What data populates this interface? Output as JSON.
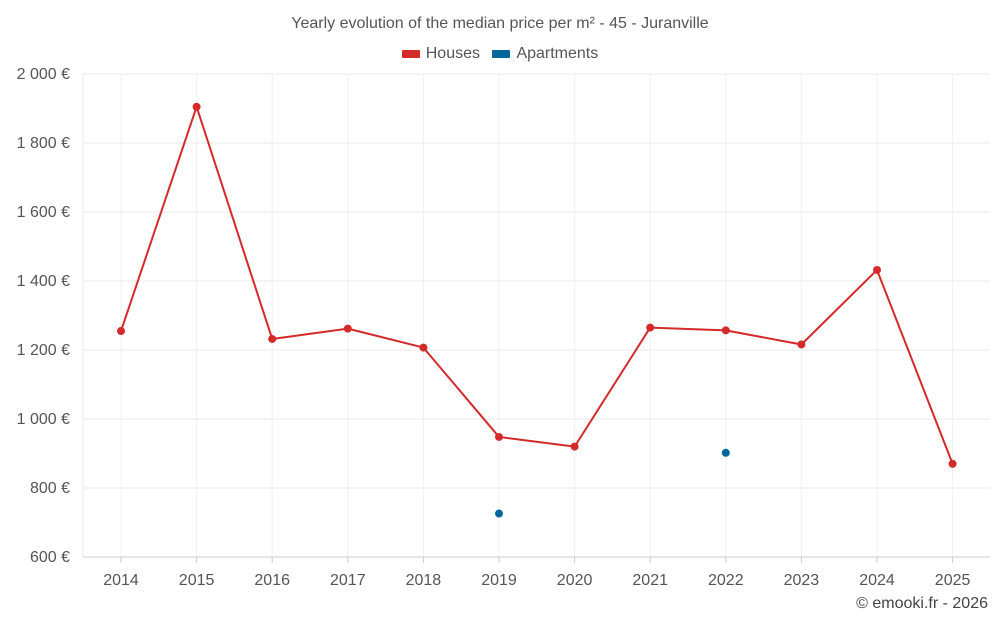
{
  "chart_data": {
    "type": "line",
    "title": "Yearly evolution of the median price per m² - 45 - Juranville",
    "xlabel": "",
    "ylabel": "",
    "categories": [
      "2014",
      "2015",
      "2016",
      "2017",
      "2018",
      "2019",
      "2020",
      "2021",
      "2022",
      "2023",
      "2024",
      "2025"
    ],
    "ylim": [
      600,
      2000
    ],
    "y_ticks": [
      600,
      800,
      1000,
      1200,
      1400,
      1600,
      1800,
      2000
    ],
    "y_tick_labels": [
      "600 €",
      "800 €",
      "1 000 €",
      "1 200 €",
      "1 400 €",
      "1 600 €",
      "1 800 €",
      "2 000 €"
    ],
    "grid": true,
    "legend_position": "top-center",
    "series": [
      {
        "name": "Houses",
        "color": "#d42a2a",
        "line": true,
        "values": [
          1255,
          1905,
          1232,
          1262,
          1207,
          948,
          920,
          1265,
          1257,
          1216,
          1432,
          870
        ]
      },
      {
        "name": "Apartments",
        "color": "#00679e",
        "line": false,
        "values": [
          null,
          null,
          null,
          null,
          null,
          726,
          null,
          null,
          902,
          null,
          null,
          null
        ]
      }
    ]
  },
  "credit": "© emooki.fr - 2026"
}
